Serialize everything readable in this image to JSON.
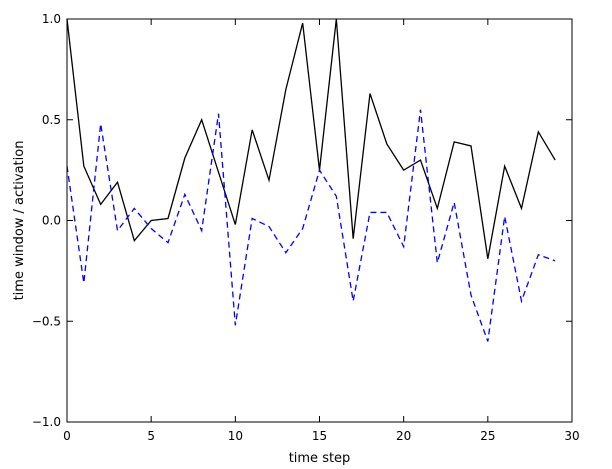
{
  "chart_data": {
    "type": "line",
    "title": "",
    "xlabel": "time step",
    "ylabel": "time window / activation",
    "xlim": [
      0,
      30
    ],
    "ylim": [
      -1.0,
      1.0
    ],
    "xticks": [
      0,
      5,
      10,
      15,
      20,
      25,
      30
    ],
    "xtick_labels": [
      "0",
      "5",
      "10",
      "15",
      "20",
      "25",
      "30"
    ],
    "yticks": [
      -1.0,
      -0.5,
      0.0,
      0.5,
      1.0
    ],
    "ytick_labels": [
      "−1.0",
      "−0.5",
      "0.0",
      "0.5",
      "1.0"
    ],
    "grid": false,
    "x": [
      0,
      1,
      2,
      3,
      4,
      5,
      6,
      7,
      8,
      9,
      10,
      11,
      12,
      13,
      14,
      15,
      16,
      17,
      18,
      19,
      20,
      21,
      22,
      23,
      24,
      25,
      26,
      27,
      28,
      29
    ],
    "series": [
      {
        "style": "solid",
        "color": "#000000",
        "values": [
          1.0,
          0.27,
          0.08,
          0.19,
          -0.1,
          0.0,
          0.01,
          0.31,
          0.5,
          0.24,
          -0.02,
          0.45,
          0.2,
          0.65,
          0.98,
          0.25,
          1.0,
          -0.09,
          0.63,
          0.38,
          0.25,
          0.3,
          0.06,
          0.39,
          0.37,
          -0.19,
          0.27,
          0.06,
          0.44,
          0.3
        ]
      },
      {
        "style": "dashed",
        "color": "#0000ff",
        "values": [
          0.27,
          -0.31,
          0.48,
          -0.05,
          0.06,
          -0.04,
          -0.11,
          0.13,
          -0.05,
          0.53,
          -0.52,
          0.01,
          -0.03,
          -0.16,
          -0.04,
          0.25,
          0.12,
          -0.4,
          0.04,
          0.04,
          -0.13,
          0.55,
          -0.21,
          0.09,
          -0.37,
          -0.6,
          0.02,
          -0.4,
          -0.17,
          -0.2
        ]
      }
    ]
  }
}
